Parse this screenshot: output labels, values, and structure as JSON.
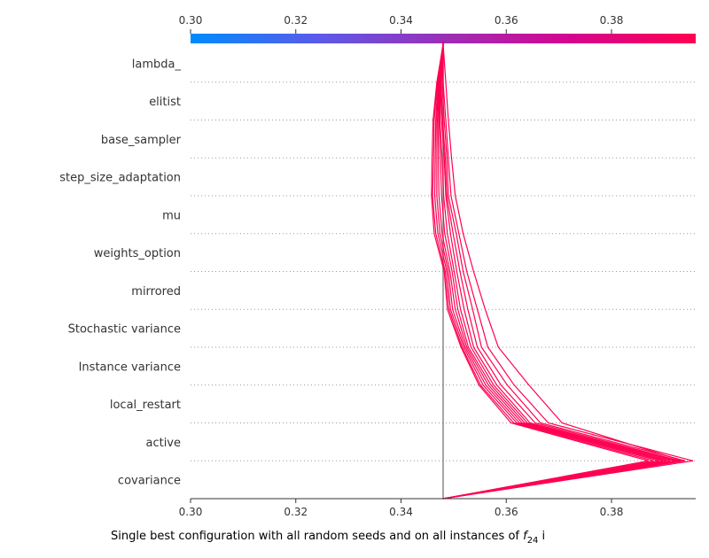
{
  "chart_data": {
    "type": "line",
    "title": "",
    "xlabel": "Single best configuration with all random seeds and on all instances of",
    "xlabel_math": "f",
    "xlabel_math_sub": "24",
    "xlabel_trail": "i",
    "ylabel": "",
    "xlim": [
      0.3,
      0.396
    ],
    "xticks": [
      "0.30",
      "0.32",
      "0.34",
      "0.36",
      "0.38"
    ],
    "expected_value": 0.348,
    "line_color": "#ff0052",
    "colorbar": {
      "range": [
        0.3,
        0.396
      ],
      "colors": [
        "#008bfb",
        "#5a5bea",
        "#9b2fb6",
        "#d4068f",
        "#ff0052"
      ]
    },
    "features": [
      "lambda_",
      "elitist",
      "base_sampler",
      "step_size_adaptation",
      "mu",
      "weights_option",
      "mirrored",
      "Stochastic variance",
      "Instance variance",
      "local_restart",
      "active",
      "covariance"
    ],
    "series": [
      {
        "values": [
          0.348,
          0.348,
          0.3485,
          0.349,
          0.3495,
          0.351,
          0.3525,
          0.3545,
          0.3565,
          0.3615,
          0.368,
          0.3955
        ]
      },
      {
        "values": [
          0.348,
          0.3478,
          0.3482,
          0.3487,
          0.349,
          0.3505,
          0.3518,
          0.3536,
          0.3553,
          0.3602,
          0.3665,
          0.394
        ]
      },
      {
        "values": [
          0.348,
          0.3476,
          0.3479,
          0.3484,
          0.3487,
          0.3499,
          0.3512,
          0.3527,
          0.3545,
          0.359,
          0.3655,
          0.393
        ]
      },
      {
        "values": [
          0.348,
          0.3475,
          0.3477,
          0.3482,
          0.3485,
          0.3494,
          0.3506,
          0.352,
          0.3538,
          0.3582,
          0.3645,
          0.3925
        ]
      },
      {
        "values": [
          0.348,
          0.3474,
          0.3474,
          0.3478,
          0.3481,
          0.3488,
          0.3501,
          0.3513,
          0.3533,
          0.3576,
          0.364,
          0.392
        ]
      },
      {
        "values": [
          0.348,
          0.3473,
          0.3472,
          0.3475,
          0.3477,
          0.3483,
          0.3497,
          0.3508,
          0.3528,
          0.3571,
          0.3635,
          0.3912
        ]
      },
      {
        "values": [
          0.348,
          0.3472,
          0.347,
          0.3471,
          0.3472,
          0.3478,
          0.3493,
          0.3503,
          0.3525,
          0.3566,
          0.363,
          0.3905
        ]
      },
      {
        "values": [
          0.348,
          0.3471,
          0.3468,
          0.3468,
          0.3468,
          0.3474,
          0.349,
          0.3498,
          0.3522,
          0.3561,
          0.3625,
          0.3898
        ]
      },
      {
        "values": [
          0.348,
          0.347,
          0.3466,
          0.3465,
          0.3464,
          0.347,
          0.3487,
          0.3494,
          0.3519,
          0.3556,
          0.362,
          0.389
        ]
      },
      {
        "values": [
          0.348,
          0.3469,
          0.3463,
          0.3462,
          0.346,
          0.3466,
          0.3484,
          0.3491,
          0.3516,
          0.3551,
          0.3614,
          0.388
        ]
      },
      {
        "values": [
          0.348,
          0.3468,
          0.3461,
          0.3459,
          0.3458,
          0.3463,
          0.3482,
          0.3488,
          0.3514,
          0.3548,
          0.3609,
          0.387
        ]
      },
      {
        "values": [
          0.348,
          0.3485,
          0.349,
          0.3496,
          0.3503,
          0.3518,
          0.3538,
          0.356,
          0.3585,
          0.3643,
          0.3706,
          0.3935
        ]
      }
    ]
  }
}
